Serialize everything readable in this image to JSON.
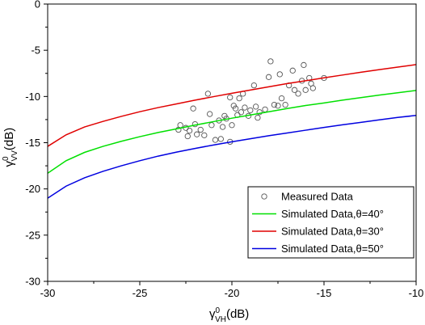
{
  "chart_data": {
    "type": "scatter",
    "xlabel": {
      "base": "γ",
      "sup": "0",
      "sub": "VH",
      "unit": "(dB)"
    },
    "ylabel": {
      "base": "γ",
      "sup": "0",
      "sub": "VV",
      "unit": "(dB)"
    },
    "xlim": [
      -30,
      -10
    ],
    "ylim": [
      -30,
      0
    ],
    "xticks": [
      -30,
      -25,
      -20,
      -15,
      -10
    ],
    "yticks": [
      0,
      -5,
      -10,
      -15,
      -20,
      -25,
      -30
    ],
    "grid": false,
    "legend_position": "bottom-right",
    "series": [
      {
        "name": "Measured Data",
        "kind": "scatter",
        "color": "#555555",
        "marker": "open-circle",
        "points": [
          [
            -22.9,
            -13.6
          ],
          [
            -22.8,
            -13.1
          ],
          [
            -22.5,
            -13.4
          ],
          [
            -22.4,
            -14.3
          ],
          [
            -22.3,
            -13.7
          ],
          [
            -22.1,
            -11.3
          ],
          [
            -22.0,
            -13.0
          ],
          [
            -21.9,
            -14.1
          ],
          [
            -21.7,
            -13.6
          ],
          [
            -21.5,
            -14.2
          ],
          [
            -21.3,
            -9.7
          ],
          [
            -21.2,
            -11.9
          ],
          [
            -21.1,
            -13.1
          ],
          [
            -20.9,
            -14.7
          ],
          [
            -20.7,
            -12.6
          ],
          [
            -20.6,
            -14.6
          ],
          [
            -20.5,
            -13.3
          ],
          [
            -20.4,
            -12.1
          ],
          [
            -20.3,
            -12.4
          ],
          [
            -20.1,
            -10.1
          ],
          [
            -20.1,
            -14.9
          ],
          [
            -20.0,
            -13.1
          ],
          [
            -19.9,
            -11.0
          ],
          [
            -19.8,
            -11.3
          ],
          [
            -19.7,
            -12.0
          ],
          [
            -19.6,
            -10.2
          ],
          [
            -19.5,
            -11.7
          ],
          [
            -19.4,
            -9.7
          ],
          [
            -19.3,
            -11.2
          ],
          [
            -19.1,
            -12.1
          ],
          [
            -19.0,
            -11.5
          ],
          [
            -18.8,
            -8.8
          ],
          [
            -18.7,
            -11.1
          ],
          [
            -18.6,
            -12.3
          ],
          [
            -18.5,
            -11.7
          ],
          [
            -18.2,
            -11.4
          ],
          [
            -18.0,
            -7.9
          ],
          [
            -17.9,
            -6.2
          ],
          [
            -17.7,
            -10.9
          ],
          [
            -17.5,
            -11.0
          ],
          [
            -17.4,
            -7.6
          ],
          [
            -17.3,
            -10.2
          ],
          [
            -17.1,
            -10.9
          ],
          [
            -16.9,
            -8.8
          ],
          [
            -16.7,
            -7.2
          ],
          [
            -16.6,
            -9.3
          ],
          [
            -16.4,
            -9.7
          ],
          [
            -16.2,
            -8.3
          ],
          [
            -16.1,
            -6.6
          ],
          [
            -16.0,
            -9.3
          ],
          [
            -15.8,
            -8.0
          ],
          [
            -15.7,
            -8.6
          ],
          [
            -15.6,
            -9.1
          ],
          [
            -15.0,
            -8.0
          ]
        ]
      },
      {
        "name": "Simulated Data,θ=40°",
        "kind": "line",
        "color": "#00e000",
        "x": [
          -30,
          -29,
          -28,
          -27,
          -26,
          -25,
          -24,
          -23,
          -22,
          -21,
          -20,
          -19,
          -18,
          -17,
          -16,
          -15,
          -14,
          -13,
          -12,
          -11,
          -10
        ],
        "y": [
          -18.3,
          -16.95,
          -16.05,
          -15.4,
          -14.85,
          -14.35,
          -13.9,
          -13.5,
          -13.1,
          -12.72,
          -12.35,
          -12.0,
          -11.65,
          -11.3,
          -10.98,
          -10.7,
          -10.4,
          -10.12,
          -9.85,
          -9.6,
          -9.35
        ]
      },
      {
        "name": "Simulated Data,θ=30°",
        "kind": "line",
        "color": "#e00000",
        "x": [
          -30,
          -29,
          -28,
          -27,
          -26,
          -25,
          -24,
          -23,
          -22,
          -21,
          -20,
          -19,
          -18,
          -17,
          -16,
          -15,
          -14,
          -13,
          -12,
          -11,
          -10
        ],
        "y": [
          -15.4,
          -14.15,
          -13.3,
          -12.7,
          -12.15,
          -11.65,
          -11.2,
          -10.8,
          -10.4,
          -10.02,
          -9.65,
          -9.3,
          -8.95,
          -8.6,
          -8.3,
          -7.98,
          -7.68,
          -7.38,
          -7.1,
          -6.82,
          -6.55
        ]
      },
      {
        "name": "Simulated Data,θ=50°",
        "kind": "line",
        "color": "#0000e0",
        "x": [
          -30,
          -29,
          -28,
          -27,
          -26,
          -25,
          -24,
          -23,
          -22,
          -21,
          -20,
          -19,
          -18,
          -17,
          -16,
          -15,
          -14,
          -13,
          -12,
          -11,
          -10
        ],
        "y": [
          -21.0,
          -19.7,
          -18.8,
          -18.1,
          -17.5,
          -16.95,
          -16.45,
          -16.02,
          -15.62,
          -15.25,
          -14.9,
          -14.57,
          -14.25,
          -13.95,
          -13.65,
          -13.35,
          -13.07,
          -12.8,
          -12.53,
          -12.27,
          -12.05
        ]
      }
    ],
    "legend_order": [
      "Measured Data",
      "Simulated Data,θ=40°",
      "Simulated Data,θ=30°",
      "Simulated Data,θ=50°"
    ]
  }
}
